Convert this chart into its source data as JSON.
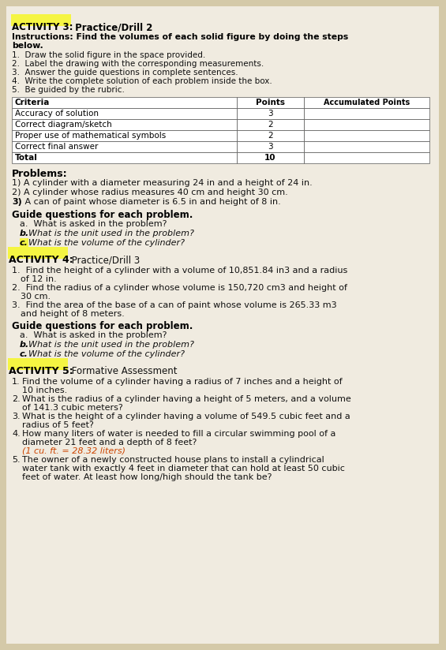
{
  "bg_color": "#d4c9a8",
  "page_bg": "#f0ebe0",
  "activity3_label": "ACTIVITY 3:",
  "activity3_title": " Practice/Drill 2",
  "activity3_instr_bold1": "Instructions: Find the volumes of each solid figure by doing the steps",
  "activity3_instr_bold2": "below.",
  "activity3_instructions": [
    "1.  Draw the solid figure in the space provided.",
    "2.  Label the drawing with the corresponding measurements.",
    "3.  Answer the guide questions in complete sentences.",
    "4.  Write the complete solution of each problem inside the box.",
    "5.  Be guided by the rubric."
  ],
  "table_criteria": [
    "Criteria",
    "Accuracy of solution",
    "Correct diagram/sketch",
    "Proper use of mathematical symbols",
    "Correct final answer",
    "Total"
  ],
  "table_points": [
    "Points",
    "3",
    "2",
    "2",
    "3",
    "10"
  ],
  "table_accum": "Accumulated Points",
  "problems_header": "Problems:",
  "problems": [
    "1) A cylinder with a diameter measuring 24 in and a height of 24 in.",
    "2) A cylinder whose radius measures 40 cm and height 30 cm.",
    "3) A can of paint whose diameter is 6.5 in and height of 8 in."
  ],
  "guide_header": "Guide questions for each problem.",
  "guide_a": "a.  What is asked in the problem?",
  "guide_b": "What is the unit used in the problem?",
  "guide_c": "What is the volume of the cylinder?",
  "activity4_label": "ACTIVITY 4:",
  "activity4_title": " Practice/Drill 3",
  "activity4_problems": [
    [
      "1.  Find the height of a cylinder with a volume of 10,851.84 in3 and a radius",
      "    of 12 in."
    ],
    [
      "2.  Find the radius of a cylinder whose volume is 150,720 cm3 and height of",
      "    30 cm."
    ],
    [
      "3.  Find the area of the base of a can of paint whose volume is 265.33 m3",
      "    and height of 8 meters."
    ]
  ],
  "activity4_guide_header": "Guide questions for each problem.",
  "activity4_guide_a": "a.  What is asked in the problem?",
  "activity4_guide_b": "What is the unit used in the problem?",
  "activity4_guide_c": "What is the volume of the cylinder?",
  "activity5_label": "ACTIVITY 5:",
  "activity5_title": " Formative Assessment",
  "activity5_items": [
    {
      "num": "1.",
      "lines": [
        "Find the volume of a cylinder having a radius of 7 inches and a height of",
        "10 inches."
      ],
      "highlight": false
    },
    {
      "num": "2.",
      "lines": [
        "What is the radius of a cylinder having a height of 5 meters, and a volume",
        "of 141.3 cubic meters?"
      ],
      "highlight": false
    },
    {
      "num": "3.",
      "lines": [
        "What is the height of a cylinder having a volume of 549.5 cubic feet and a",
        "radius of 5 feet?"
      ],
      "highlight": false
    },
    {
      "num": "4.",
      "lines": [
        "How many liters of water is needed to fill a circular swimming pool of a",
        "diameter 21 feet and a depth of 8 feet?"
      ],
      "highlight": true,
      "highlight_text": "(1 cu. ft. = 28.32 liters)"
    },
    {
      "num": "5.",
      "lines": [
        "The owner of a newly constructed house plans to install a cylindrical",
        "water tank with exactly 4 feet in diameter that can hold at least 50 cubic",
        "feet of water. At least how long/high should the tank be?"
      ],
      "highlight": false
    }
  ],
  "yellow_highlight": "#f5f542",
  "orange_highlight": "#cc4400",
  "text_color": "#111111",
  "bold_color": "#000000"
}
